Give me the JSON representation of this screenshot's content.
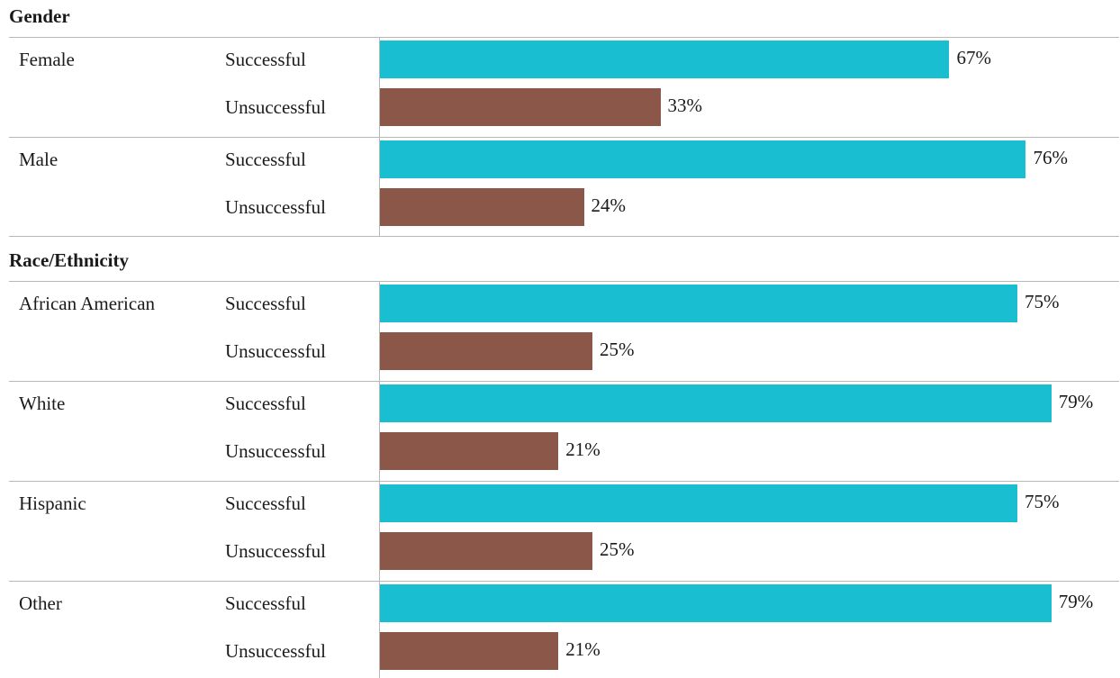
{
  "chart_data": {
    "type": "bar",
    "orientation": "horizontal",
    "xlim": [
      0,
      100
    ],
    "value_suffix": "%",
    "colors": {
      "Successful": "#19bfd0",
      "Unsuccessful": "#8b5748"
    },
    "sections": [
      {
        "title": "Gender",
        "groups": [
          {
            "label": "Female",
            "bars": [
              {
                "outcome": "Successful",
                "value": 67,
                "label": "67%"
              },
              {
                "outcome": "Unsuccessful",
                "value": 33,
                "label": "33%"
              }
            ]
          },
          {
            "label": "Male",
            "bars": [
              {
                "outcome": "Successful",
                "value": 76,
                "label": "76%"
              },
              {
                "outcome": "Unsuccessful",
                "value": 24,
                "label": "24%"
              }
            ]
          }
        ]
      },
      {
        "title": "Race/Ethnicity",
        "groups": [
          {
            "label": "African American",
            "bars": [
              {
                "outcome": "Successful",
                "value": 75,
                "label": "75%"
              },
              {
                "outcome": "Unsuccessful",
                "value": 25,
                "label": "25%"
              }
            ]
          },
          {
            "label": "White",
            "bars": [
              {
                "outcome": "Successful",
                "value": 79,
                "label": "79%"
              },
              {
                "outcome": "Unsuccessful",
                "value": 21,
                "label": "21%"
              }
            ]
          },
          {
            "label": "Hispanic",
            "bars": [
              {
                "outcome": "Successful",
                "value": 75,
                "label": "75%"
              },
              {
                "outcome": "Unsuccessful",
                "value": 25,
                "label": "25%"
              }
            ]
          },
          {
            "label": "Other",
            "bars": [
              {
                "outcome": "Successful",
                "value": 79,
                "label": "79%"
              },
              {
                "outcome": "Unsuccessful",
                "value": 21,
                "label": "21%"
              }
            ]
          }
        ]
      }
    ]
  }
}
